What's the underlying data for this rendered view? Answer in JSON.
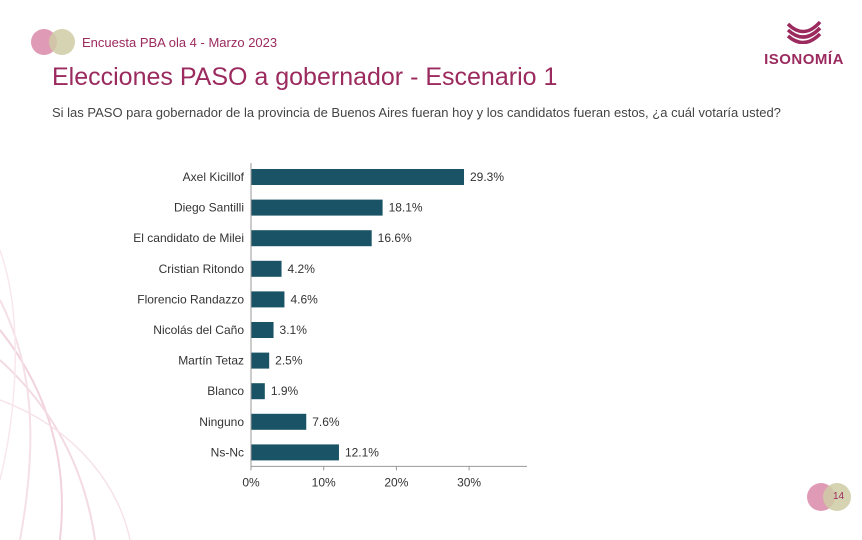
{
  "header": {
    "survey_label": "Encuesta PBA ola 4 - Marzo 2023",
    "title": "Elecciones PASO a gobernador - Escenario 1",
    "subtitle": "Si las PASO para gobernador de la provincia de Buenos Aires fueran hoy y los candidatos fueran estos, ¿a cuál votaría usted?"
  },
  "brand": {
    "name": "ISONOMÍA"
  },
  "page_number": "14",
  "colors": {
    "accent": "#9b2a5e",
    "bar": "#1a5366",
    "circle_pink": "#d4829f",
    "circle_olive": "#c8c49a"
  },
  "chart_data": {
    "type": "bar",
    "orientation": "horizontal",
    "categories": [
      "Axel Kicillof",
      "Diego Santilli",
      "El candidato de Milei",
      "Cristian Ritondo",
      "Florencio Randazzo",
      "Nicolás del Caño",
      "Martín Tetaz",
      "Blanco",
      "Ninguno",
      "Ns-Nc"
    ],
    "values": [
      29.3,
      18.1,
      16.6,
      4.2,
      4.6,
      3.1,
      2.5,
      1.9,
      7.6,
      12.1
    ],
    "value_labels": [
      "29.3%",
      "18.1%",
      "16.6%",
      "4.2%",
      "4.6%",
      "3.1%",
      "2.5%",
      "1.9%",
      "7.6%",
      "12.1%"
    ],
    "xticks": [
      "0%",
      "10%",
      "20%",
      "30%"
    ],
    "xlim": [
      0,
      37
    ],
    "grid": false,
    "legend": "none"
  }
}
